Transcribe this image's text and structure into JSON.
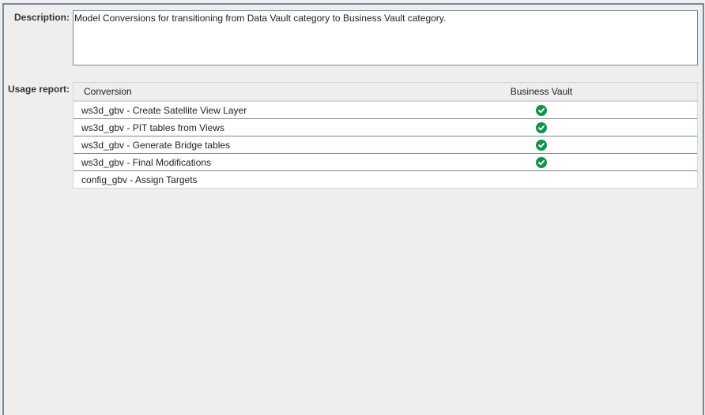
{
  "description": {
    "label": "Description:",
    "value": "Model Conversions for transitioning from Data Vault category to Business Vault category."
  },
  "usage_report": {
    "label": "Usage report:",
    "columns": [
      "Conversion",
      "Business Vault"
    ],
    "rows": [
      {
        "conversion": "ws3d_gbv - Create Satellite View Layer",
        "business_vault": true
      },
      {
        "conversion": "ws3d_gbv - PIT tables from Views",
        "business_vault": true
      },
      {
        "conversion": "ws3d_gbv - Generate Bridge tables",
        "business_vault": true
      },
      {
        "conversion": "ws3d_gbv - Final Modifications",
        "business_vault": true
      },
      {
        "conversion": "config_gbv - Assign Targets",
        "business_vault": false
      }
    ],
    "check_icon": "check-circle-icon",
    "check_color": "#0f9448"
  }
}
